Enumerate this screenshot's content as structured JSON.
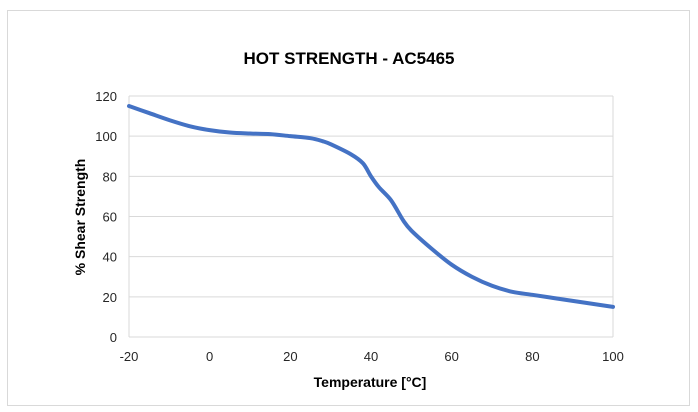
{
  "chart_data": {
    "type": "line",
    "title": "HOT STRENGTH - AC5465",
    "xlabel": "Temperature [°C]",
    "ylabel": "% Shear Strength",
    "xlim": [
      -20,
      100
    ],
    "ylim": [
      0,
      120
    ],
    "x_ticks": [
      "-20",
      "0",
      "20",
      "40",
      "60",
      "80",
      "100"
    ],
    "y_ticks": [
      "0",
      "20",
      "40",
      "60",
      "80",
      "100",
      "120"
    ],
    "grid": "horizontal",
    "legend": "none",
    "series": [
      {
        "color": "#4472c4",
        "x": [
          -20,
          -15,
          -10,
          -5,
          0,
          5,
          10,
          15,
          20,
          25,
          28,
          30,
          35,
          38,
          40,
          42,
          45,
          48,
          50,
          55,
          60,
          65,
          70,
          75,
          80,
          85,
          90,
          95,
          100
        ],
        "y": [
          115,
          111.5,
          108,
          105,
          103,
          101.8,
          101.3,
          101,
          100,
          99,
          97.5,
          96,
          91,
          86.5,
          80,
          74.5,
          68,
          58,
          53,
          44,
          36,
          30,
          25.5,
          22.5,
          21,
          19.5,
          18,
          16.5,
          15
        ]
      }
    ]
  }
}
